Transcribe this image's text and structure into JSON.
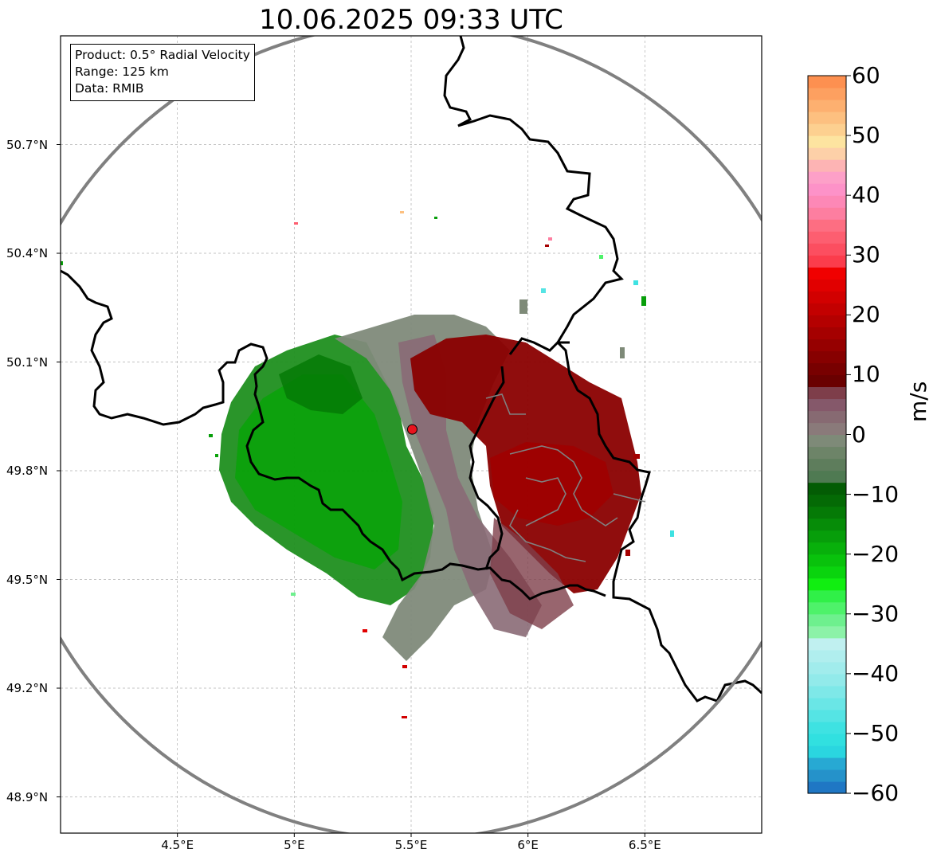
{
  "title": "10.06.2025 09:33 UTC",
  "info_box": {
    "product": "Product: 0.5° Radial Velocity",
    "range": "Range: 125 km",
    "data": "Data: RMIB"
  },
  "map": {
    "lon_range": [
      4.0,
      7.0
    ],
    "lat_range": [
      48.8,
      51.0
    ],
    "radar_site": {
      "lon": 5.505,
      "lat": 49.914
    },
    "range_ring_km": 125,
    "lat_ticks": [
      {
        "value": 50.7,
        "label": "50.7°N"
      },
      {
        "value": 50.4,
        "label": "50.4°N"
      },
      {
        "value": 50.1,
        "label": "50.1°N"
      },
      {
        "value": 49.8,
        "label": "49.8°N"
      },
      {
        "value": 49.5,
        "label": "49.5°N"
      },
      {
        "value": 49.2,
        "label": "49.2°N"
      },
      {
        "value": 48.9,
        "label": "48.9°N"
      }
    ],
    "lon_ticks": [
      {
        "value": 4.5,
        "label": "4.5°E"
      },
      {
        "value": 5.0,
        "label": "5°E"
      },
      {
        "value": 5.5,
        "label": "5.5°E"
      },
      {
        "value": 6.0,
        "label": "6°E"
      },
      {
        "value": 6.5,
        "label": "6.5°E"
      }
    ],
    "grid": true,
    "colors": {
      "ring": "#808080",
      "border": "#000000",
      "subborder": "#808080",
      "radar_marker": "#e8141e",
      "grid": "#b0b0b0"
    }
  },
  "colorbar": {
    "unit": "m/s",
    "min": -60,
    "max": 60,
    "ticks": [
      {
        "value": 60,
        "label": "60"
      },
      {
        "value": 50,
        "label": "50"
      },
      {
        "value": 40,
        "label": "40"
      },
      {
        "value": 30,
        "label": "30"
      },
      {
        "value": 20,
        "label": "20"
      },
      {
        "value": 10,
        "label": "10"
      },
      {
        "value": 0,
        "label": "0"
      },
      {
        "value": -10,
        "label": "−10"
      },
      {
        "value": -20,
        "label": "−20"
      },
      {
        "value": -30,
        "label": "−30"
      },
      {
        "value": -40,
        "label": "−40"
      },
      {
        "value": -50,
        "label": "−50"
      },
      {
        "value": -60,
        "label": "−60"
      }
    ],
    "bands": [
      {
        "from": -60,
        "to": -58,
        "color": "#1f77c4"
      },
      {
        "from": -58,
        "to": -56,
        "color": "#2592ca"
      },
      {
        "from": -56,
        "to": -54,
        "color": "#27a9d3"
      },
      {
        "from": -54,
        "to": -52,
        "color": "#2ad6e0"
      },
      {
        "from": -52,
        "to": -50,
        "color": "#31e0e0"
      },
      {
        "from": -50,
        "to": -48,
        "color": "#3ee2e2"
      },
      {
        "from": -48,
        "to": -46,
        "color": "#55e4e4"
      },
      {
        "from": -46,
        "to": -44,
        "color": "#6ae6e6"
      },
      {
        "from": -44,
        "to": -42,
        "color": "#7ee8e8"
      },
      {
        "from": -42,
        "to": -40,
        "color": "#92eaea"
      },
      {
        "from": -40,
        "to": -38,
        "color": "#a1ecec"
      },
      {
        "from": -38,
        "to": -36,
        "color": "#b0eeee"
      },
      {
        "from": -36,
        "to": -34,
        "color": "#c0f0f0"
      },
      {
        "from": -34,
        "to": -32,
        "color": "#8cf2a8"
      },
      {
        "from": -32,
        "to": -30,
        "color": "#6ef08e"
      },
      {
        "from": -30,
        "to": -28,
        "color": "#4ef26a"
      },
      {
        "from": -28,
        "to": -26,
        "color": "#30f048"
      },
      {
        "from": -26,
        "to": -24,
        "color": "#11ee11"
      },
      {
        "from": -24,
        "to": -22,
        "color": "#0ad40e"
      },
      {
        "from": -22,
        "to": -20,
        "color": "#09c20c"
      },
      {
        "from": -20,
        "to": -18,
        "color": "#08b00b"
      },
      {
        "from": -18,
        "to": -16,
        "color": "#079e0a"
      },
      {
        "from": -16,
        "to": -14,
        "color": "#068c08"
      },
      {
        "from": -14,
        "to": -12,
        "color": "#057a06"
      },
      {
        "from": -12,
        "to": -10,
        "color": "#046a05"
      },
      {
        "from": -10,
        "to": -8,
        "color": "#035c04"
      },
      {
        "from": -8,
        "to": -6,
        "color": "#4f7a52"
      },
      {
        "from": -6,
        "to": -4,
        "color": "#5e7d5c"
      },
      {
        "from": -4,
        "to": -2,
        "color": "#6d8468"
      },
      {
        "from": -2,
        "to": 0,
        "color": "#7e8a78"
      },
      {
        "from": 0,
        "to": 2,
        "color": "#8a7a7a"
      },
      {
        "from": 2,
        "to": 4,
        "color": "#876a72"
      },
      {
        "from": 4,
        "to": 6,
        "color": "#85586a"
      },
      {
        "from": 6,
        "to": 8,
        "color": "#7e3e4a"
      },
      {
        "from": 8,
        "to": 10,
        "color": "#6a0000"
      },
      {
        "from": 10,
        "to": 12,
        "color": "#780000"
      },
      {
        "from": 12,
        "to": 14,
        "color": "#870000"
      },
      {
        "from": 14,
        "to": 16,
        "color": "#960000"
      },
      {
        "from": 16,
        "to": 18,
        "color": "#a50000"
      },
      {
        "from": 18,
        "to": 20,
        "color": "#b40000"
      },
      {
        "from": 20,
        "to": 22,
        "color": "#c30000"
      },
      {
        "from": 22,
        "to": 24,
        "color": "#d20000"
      },
      {
        "from": 24,
        "to": 26,
        "color": "#e10000"
      },
      {
        "from": 26,
        "to": 28,
        "color": "#f00000"
      },
      {
        "from": 28,
        "to": 30,
        "color": "#fb3c4c"
      },
      {
        "from": 30,
        "to": 32,
        "color": "#fc4e60"
      },
      {
        "from": 32,
        "to": 34,
        "color": "#fd5e70"
      },
      {
        "from": 34,
        "to": 36,
        "color": "#fd6e82"
      },
      {
        "from": 36,
        "to": 38,
        "color": "#fd7ea0"
      },
      {
        "from": 38,
        "to": 40,
        "color": "#fd88b6"
      },
      {
        "from": 40,
        "to": 42,
        "color": "#fd92c8"
      },
      {
        "from": 42,
        "to": 44,
        "color": "#fda0c8"
      },
      {
        "from": 44,
        "to": 46,
        "color": "#fdb4b4"
      },
      {
        "from": 46,
        "to": 48,
        "color": "#fdd0a8"
      },
      {
        "from": 48,
        "to": 50,
        "color": "#fde4a0"
      },
      {
        "from": 50,
        "to": 52,
        "color": "#fdd090"
      },
      {
        "from": 52,
        "to": 54,
        "color": "#fdc080"
      },
      {
        "from": 54,
        "to": 56,
        "color": "#fdb070"
      },
      {
        "from": 56,
        "to": 58,
        "color": "#fda060"
      },
      {
        "from": 58,
        "to": 60,
        "color": "#fd9050"
      }
    ]
  }
}
